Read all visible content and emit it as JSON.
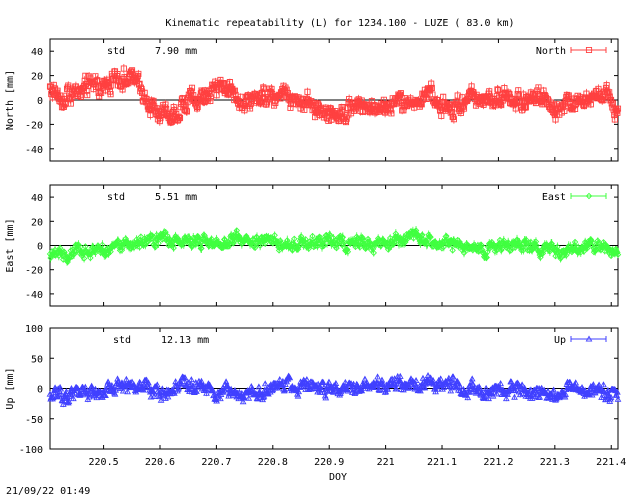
{
  "title": "Kinematic repeatability (L) for 1234.100 - LUZE  ( 83.0 km)",
  "timestamp": "21/09/22 01:49",
  "xlabel": "DOY",
  "chart_data": [
    {
      "type": "scatter",
      "series": [
        {
          "name": "North",
          "color": "#ff4040",
          "marker": "open-square-with-errorbar"
        }
      ],
      "ylabel": "North [mm]",
      "std_label": "std",
      "std_value": "7.90 mm",
      "ylim": [
        -50,
        50
      ],
      "yticks": [
        "40",
        "20",
        "0",
        "-20",
        "-40"
      ],
      "xlim": [
        220.405,
        221.412
      ],
      "xticks": [
        "220.5",
        "220.6",
        "220.7",
        "220.8",
        "220.9",
        "221",
        "221.1",
        "221.2",
        "221.3",
        "221.4"
      ],
      "profile": {
        "x": [
          220.405,
          220.43,
          220.47,
          220.5,
          220.54,
          220.56,
          220.6,
          220.63,
          220.66,
          220.69,
          220.72,
          220.75,
          220.78,
          220.82,
          220.86,
          220.9,
          220.93,
          220.97,
          221.0,
          221.04,
          221.08,
          221.12,
          221.16,
          221.2,
          221.24,
          221.27,
          221.3,
          221.33,
          221.36,
          221.39,
          221.412
        ],
        "y": [
          10,
          2,
          10,
          12,
          20,
          12,
          -12,
          -10,
          2,
          6,
          12,
          -4,
          4,
          6,
          -2,
          -12,
          -10,
          -2,
          -6,
          -2,
          2,
          -6,
          2,
          4,
          0,
          6,
          -8,
          -4,
          2,
          6,
          -12
        ]
      },
      "noise_mm": 7
    },
    {
      "type": "scatter",
      "series": [
        {
          "name": "East",
          "color": "#40ff40",
          "marker": "diamond-with-errorbar"
        }
      ],
      "ylabel": "East [mm]",
      "std_label": "std",
      "std_value": "5.51 mm",
      "ylim": [
        -50,
        50
      ],
      "yticks": [
        "40",
        "20",
        "0",
        "-20",
        "-40"
      ],
      "xlim": [
        220.405,
        221.412
      ],
      "xticks": [
        "220.5",
        "220.6",
        "220.7",
        "220.8",
        "220.9",
        "221",
        "221.1",
        "221.2",
        "221.3",
        "221.4"
      ],
      "profile": {
        "x": [
          220.405,
          220.44,
          220.48,
          220.53,
          220.57,
          220.61,
          220.65,
          220.7,
          220.74,
          220.78,
          220.82,
          220.86,
          220.9,
          220.95,
          221.0,
          221.04,
          221.08,
          221.12,
          221.16,
          221.2,
          221.24,
          221.28,
          221.32,
          221.36,
          221.412
        ],
        "y": [
          -8,
          -6,
          -4,
          -2,
          4,
          6,
          4,
          2,
          6,
          4,
          0,
          2,
          4,
          2,
          2,
          6,
          4,
          2,
          -2,
          -4,
          0,
          -2,
          -6,
          0,
          -6
        ]
      },
      "noise_mm": 5
    },
    {
      "type": "scatter",
      "series": [
        {
          "name": "Up",
          "color": "#4040ff",
          "marker": "triangle-with-errorbar"
        }
      ],
      "ylabel": "Up [mm]",
      "std_label": "std",
      "std_value": "12.13 mm",
      "ylim": [
        -100,
        100
      ],
      "yticks": [
        "100",
        "50",
        "0",
        "-50",
        "-100"
      ],
      "xlim": [
        220.405,
        221.412
      ],
      "xticks": [
        "220.5",
        "220.6",
        "220.7",
        "220.8",
        "220.9",
        "221",
        "221.1",
        "221.2",
        "221.3",
        "221.4"
      ],
      "profile": {
        "x": [
          220.405,
          220.45,
          220.5,
          220.55,
          220.6,
          220.65,
          220.7,
          220.75,
          220.8,
          220.85,
          220.9,
          220.95,
          221.0,
          221.05,
          221.1,
          221.15,
          221.2,
          221.25,
          221.3,
          221.35,
          221.412
        ],
        "y": [
          -12,
          -8,
          -4,
          8,
          -6,
          6,
          -6,
          -8,
          0,
          2,
          2,
          4,
          8,
          10,
          6,
          0,
          -4,
          -4,
          -8,
          0,
          -10
        ]
      },
      "noise_mm": 11
    }
  ]
}
